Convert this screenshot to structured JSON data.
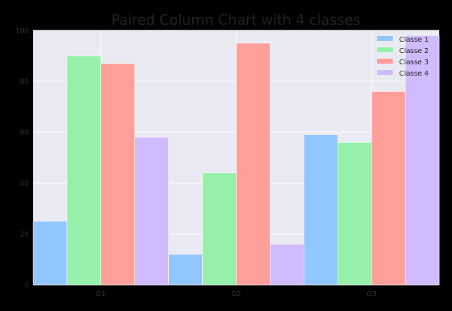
{
  "chart_data": {
    "type": "bar",
    "title": "Paired Column Chart with 4 classes",
    "xlabel": "",
    "ylabel": "",
    "categories": [
      "G1",
      "G2",
      "G3"
    ],
    "ylim": [
      0,
      100
    ],
    "yticks": [
      0,
      20,
      40,
      60,
      80,
      100
    ],
    "grid": true,
    "legend_position": "top-right",
    "series": [
      {
        "name": "Classe 1",
        "color": "#92c6ff",
        "values": [
          25,
          12,
          59
        ]
      },
      {
        "name": "Classe 2",
        "color": "#97f0aa",
        "values": [
          90,
          44,
          56
        ]
      },
      {
        "name": "Classe 3",
        "color": "#ff9f9a",
        "values": [
          87,
          95,
          76
        ]
      },
      {
        "name": "Classe 4",
        "color": "#d0bbff",
        "values": [
          58,
          16,
          98
        ]
      }
    ],
    "colors": {
      "plot_background": "#eaeaf2",
      "grid": "#ffffff"
    }
  }
}
